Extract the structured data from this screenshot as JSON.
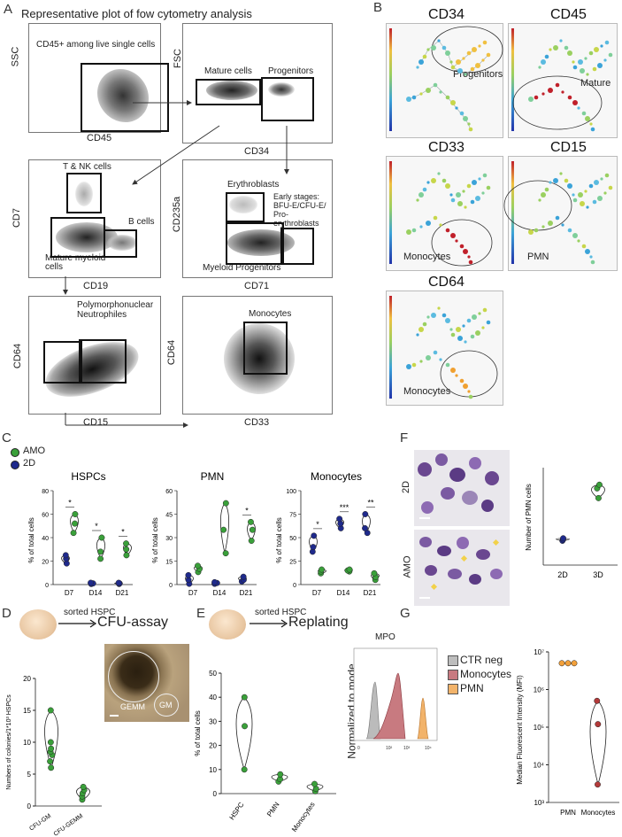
{
  "panelA": {
    "letter": "A",
    "title": "Representative plot of fow cytometry analysis",
    "p1": {
      "y": "SSC",
      "x": "CD45",
      "note": "CD45+ among live single cells"
    },
    "p2": {
      "y": "FSC",
      "x": "CD34",
      "g1": "Mature cells",
      "g2": "Progenitors"
    },
    "p3": {
      "y": "CD7",
      "x": "CD19",
      "g1": "T & NK cells",
      "g2": "B cells",
      "g3": "Mature myeloid cells"
    },
    "p4": {
      "y": "CD235a",
      "x": "CD71",
      "g1": "Erythroblasts",
      "g2": "Early stages: BFU-E/CFU-E/ Pro-erythroblasts",
      "g3": "Myeloid Progenitors"
    },
    "p5": {
      "y": "CD64",
      "x": "CD15",
      "g1": "Polymorphonuclear Neutrophiles"
    },
    "p6": {
      "y": "CD64",
      "x": "CD33",
      "g1": "Monocytes"
    }
  },
  "panelB": {
    "letter": "B",
    "maps": [
      {
        "title": "CD34",
        "label": "Progenitors"
      },
      {
        "title": "CD45",
        "label": "Mature"
      },
      {
        "title": "CD33",
        "label": "Monocytes"
      },
      {
        "title": "CD15",
        "label": "PMN"
      },
      {
        "title": "CD64",
        "label": "Monocytes"
      }
    ]
  },
  "panelC": {
    "letter": "C",
    "legend": [
      "AMO",
      "2D"
    ],
    "colors": {
      "amo": "#3aa03a",
      "d2": "#1f2a8c"
    },
    "ylabel": "% of total cells",
    "categories": [
      "D7",
      "D14",
      "D21"
    ]
  },
  "panelD": {
    "letter": "D",
    "sorted": "sorted HSPC",
    "assay": "CFU-assay",
    "ylabel": "Numbers of colonies/1*10³ HSPCs",
    "cats": [
      "CFU-GM",
      "CFU-GEMM"
    ],
    "img_labels": [
      "GEMM",
      "GM"
    ]
  },
  "panelE": {
    "letter": "E",
    "sorted": "sorted HSPC",
    "assay": "Replating",
    "ylabel": "% of total cells",
    "cats": [
      "HSPC",
      "PMN",
      "Monocytes"
    ]
  },
  "panelF": {
    "letter": "F",
    "row1": "2D",
    "row2": "AMO",
    "ylabel": "Number of PMN cells",
    "cats": [
      "2D",
      "3D"
    ]
  },
  "panelG": {
    "letter": "G",
    "hist_title": "MPO",
    "hist_ylabel": "Normalized to mode",
    "legend": [
      "CTR neg",
      "Monocytes",
      "PMN"
    ],
    "mfi_ylabel": "Median Fluorescent Intensity (MFI)",
    "cats": [
      "PMN",
      "Monocytes"
    ]
  },
  "chart_data": [
    {
      "type": "scatter",
      "title": "HSPCs",
      "ylabel": "% of total cells",
      "categories": [
        "D7",
        "D14",
        "D21"
      ],
      "ylim": [
        0,
        80
      ],
      "series": [
        {
          "name": "AMO",
          "values": [
            [
              44,
              52,
              60
            ],
            [
              22,
              28,
              40
            ],
            [
              25,
              30,
              35
            ]
          ]
        },
        {
          "name": "2D",
          "values": [
            [
              18,
              22,
              25
            ],
            [
              0.5,
              1,
              1.5
            ],
            [
              0.5,
              1,
              1.5
            ]
          ]
        }
      ],
      "annotations": [
        "*",
        "*",
        "*"
      ]
    },
    {
      "type": "scatter",
      "title": "PMN",
      "ylabel": "% of total cells",
      "categories": [
        "D7",
        "D14",
        "D21"
      ],
      "ylim": [
        0,
        60
      ],
      "series": [
        {
          "name": "AMO",
          "values": [
            [
              8,
              10,
              12
            ],
            [
              20,
              35,
              52
            ],
            [
              28,
              35,
              40
            ]
          ]
        },
        {
          "name": "2D",
          "values": [
            [
              0.5,
              3,
              6
            ],
            [
              0.5,
              1,
              1.5
            ],
            [
              2,
              3,
              5
            ]
          ]
        }
      ],
      "annotations": [
        "",
        "",
        "*"
      ]
    },
    {
      "type": "scatter",
      "title": "Monocytes",
      "ylabel": "% of total cells",
      "categories": [
        "D7",
        "D14",
        "D21"
      ],
      "ylim": [
        0,
        100
      ],
      "series": [
        {
          "name": "AMO",
          "values": [
            [
              12,
              14,
              16
            ],
            [
              14,
              15,
              16
            ],
            [
              5,
              8,
              12
            ]
          ]
        },
        {
          "name": "2D",
          "values": [
            [
              35,
              40,
              52
            ],
            [
              60,
              65,
              70
            ],
            [
              55,
              60,
              75
            ]
          ]
        }
      ],
      "annotations": [
        "*",
        "***",
        "**"
      ]
    },
    {
      "type": "scatter",
      "categories": [
        "CFU-GM",
        "CFU-GEMM"
      ],
      "ylim": [
        0,
        20
      ],
      "yticks": [
        0,
        5,
        10,
        15,
        20
      ],
      "series": [
        {
          "values": [
            [
              6,
              7,
              8,
              8.5,
              9,
              10,
              15
            ],
            [
              1,
              1.5,
              2,
              2.5,
              3
            ]
          ]
        }
      ]
    },
    {
      "type": "scatter",
      "categories": [
        "HSPC",
        "PMN",
        "Monocytes"
      ],
      "ylim": [
        0,
        50
      ],
      "yticks": [
        0,
        10,
        20,
        30,
        40,
        50
      ],
      "series": [
        {
          "values": [
            [
              10,
              28,
              40
            ],
            [
              5,
              6,
              8
            ],
            [
              1,
              2,
              4
            ]
          ]
        }
      ]
    },
    {
      "type": "scatter",
      "categories": [
        "2D",
        "3D"
      ],
      "series": [
        {
          "values": [
            [
              20,
              21,
              22
            ],
            [
              55,
              63,
              66
            ]
          ]
        }
      ]
    },
    {
      "type": "scatter",
      "categories": [
        "PMN",
        "Monocytes"
      ],
      "ylim": [
        1000,
        10000000
      ],
      "log": true,
      "series": [
        {
          "values": [
            [
              5000000,
              5000000,
              5000000
            ],
            [
              3000,
              120000,
              500000
            ]
          ]
        }
      ]
    }
  ]
}
